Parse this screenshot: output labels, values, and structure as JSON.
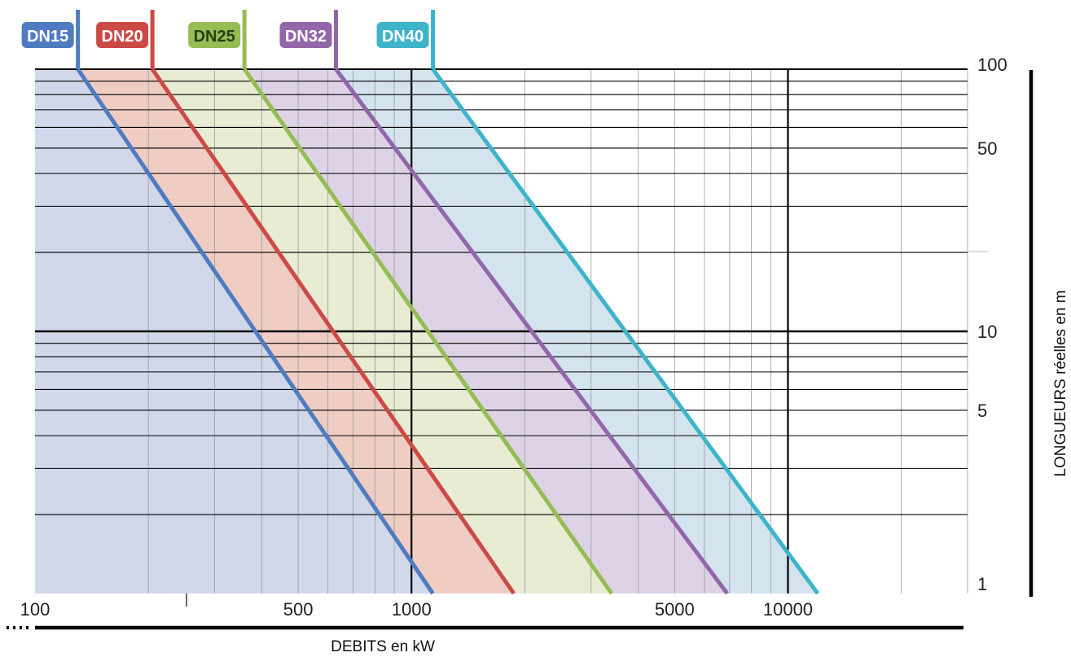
{
  "chart_data": {
    "type": "line",
    "title": "",
    "xlabel": "DEBITS en kW",
    "ylabel": "LONGUEURS réelles en m",
    "x_scale": "log",
    "y_scale": "log",
    "xlim": [
      100,
      30000
    ],
    "ylim": [
      1,
      100
    ],
    "x_ticks": [
      "100",
      "500",
      "1000",
      "5000",
      "10000"
    ],
    "y_ticks": [
      "100",
      "50",
      "10",
      "5",
      "1"
    ],
    "grid": true,
    "legend_position": "top",
    "series": [
      {
        "name": "DN15",
        "color": "#4f7bc0",
        "fill": "#d0d8ea",
        "points": [
          [
            130,
            100
          ],
          [
            1140,
            1
          ]
        ]
      },
      {
        "name": "DN20",
        "color": "#cc4a45",
        "fill": "#efcdc3",
        "points": [
          [
            205,
            100
          ],
          [
            1870,
            1
          ]
        ]
      },
      {
        "name": "DN25",
        "color": "#94bd55",
        "fill": "#e7ecd2",
        "points": [
          [
            360,
            100
          ],
          [
            3400,
            1
          ]
        ]
      },
      {
        "name": "DN32",
        "color": "#9366aa",
        "fill": "#ded3e6",
        "points": [
          [
            630,
            100
          ],
          [
            6900,
            1
          ]
        ]
      },
      {
        "name": "DN40",
        "color": "#3eb4cb",
        "fill": "#d3e4ee",
        "points": [
          [
            1140,
            100
          ],
          [
            12000,
            1
          ]
        ]
      }
    ]
  }
}
